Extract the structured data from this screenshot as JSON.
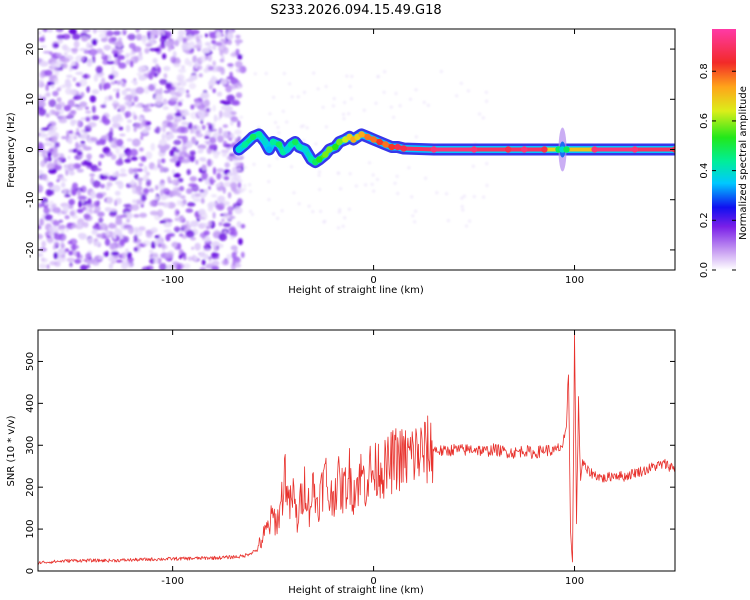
{
  "figure": {
    "title": "S233.2026.094.15.49.G18"
  },
  "chart_data": [
    {
      "type": "heatmap",
      "xlabel": "Height of straight line (km)",
      "ylabel": "Frequency (Hz)",
      "xlim": [
        -167,
        150
      ],
      "ylim": [
        -24,
        24
      ],
      "xticks": [
        -100,
        0,
        100
      ],
      "xtick_labels": [
        "-100",
        "0",
        "100"
      ],
      "yticks": [
        -20,
        -10,
        0,
        10,
        20
      ],
      "ytick_labels": [
        "-20",
        "-10",
        "0",
        "10",
        "20"
      ],
      "noise_region_x": [
        -167,
        -67
      ],
      "trace": {
        "x": [
          -67,
          -64,
          -60,
          -57,
          -54,
          -52,
          -50,
          -47,
          -45,
          -43,
          -41,
          -39,
          -37,
          -34,
          -31,
          -29,
          -27,
          -24,
          -22,
          -19,
          -17,
          -14,
          -12,
          -10,
          -8,
          -6,
          -3,
          0,
          3,
          6,
          9,
          12,
          15,
          30,
          50,
          67,
          75,
          85,
          92,
          94,
          96,
          110,
          130,
          150
        ],
        "freq_hz": [
          0,
          1,
          2.5,
          3,
          1.5,
          0,
          1.5,
          1,
          -0.5,
          0,
          1,
          1.5,
          0.5,
          0,
          -2,
          -2.5,
          -2,
          -1,
          0,
          0.5,
          1.5,
          2,
          2.5,
          2,
          2.5,
          3,
          2.5,
          2,
          1.5,
          1,
          0.5,
          0.5,
          0.2,
          0,
          0,
          0,
          0,
          0,
          0,
          0,
          0,
          0,
          0,
          0
        ],
        "amplitude": [
          0.4,
          0.45,
          0.5,
          0.45,
          0.4,
          0.35,
          0.45,
          0.5,
          0.45,
          0.4,
          0.45,
          0.5,
          0.45,
          0.4,
          0.45,
          0.5,
          0.55,
          0.6,
          0.6,
          0.55,
          0.6,
          0.65,
          0.7,
          0.75,
          0.7,
          0.75,
          0.8,
          0.8,
          0.85,
          0.8,
          0.85,
          0.9,
          0.9,
          0.95,
          0.95,
          0.9,
          0.95,
          0.9,
          0.5,
          0.4,
          0.5,
          0.95,
          0.95,
          0.9
        ]
      },
      "colorbar": {
        "label": "Normalized spectral amplitude",
        "ticks": [
          0.0,
          0.2,
          0.4,
          0.6,
          0.8
        ],
        "tick_labels": [
          "0.0",
          "0.2",
          "0.4",
          "0.6",
          "0.8"
        ],
        "range": [
          0,
          0.97
        ]
      }
    },
    {
      "type": "line",
      "xlabel": "Height of straight line (km)",
      "ylabel": "SNR (10 * v/v)",
      "xlim": [
        -167,
        150
      ],
      "ylim": [
        0,
        575
      ],
      "xticks": [
        -100,
        0,
        100
      ],
      "xtick_labels": [
        "-100",
        "0",
        "100"
      ],
      "yticks": [
        0,
        100,
        200,
        300,
        400,
        500
      ],
      "ytick_labels": [
        "0",
        "100",
        "200",
        "300",
        "400",
        "500"
      ],
      "series": [
        {
          "name": "SNR",
          "color": "#e8322d",
          "x": [
            -167,
            -150,
            -130,
            -110,
            -90,
            -75,
            -65,
            -58,
            -55,
            -52,
            -50,
            -48,
            -46,
            -44,
            -42,
            -40,
            -38,
            -36,
            -34,
            -32,
            -30,
            -28,
            -26,
            -24,
            -22,
            -20,
            -18,
            -16,
            -14,
            -12,
            -10,
            -8,
            -6,
            -4,
            -2,
            0,
            3,
            6,
            9,
            12,
            15,
            18,
            22,
            26,
            30,
            35,
            40,
            45,
            50,
            55,
            60,
            65,
            70,
            75,
            80,
            85,
            90,
            94,
            96,
            97,
            98,
            99,
            100,
            101,
            102,
            103,
            104,
            106,
            110,
            115,
            120,
            125,
            130,
            135,
            140,
            145,
            150
          ],
          "y": [
            20,
            25,
            25,
            28,
            30,
            32,
            35,
            50,
            80,
            110,
            130,
            115,
            160,
            240,
            150,
            180,
            120,
            170,
            210,
            150,
            200,
            160,
            190,
            230,
            170,
            180,
            220,
            190,
            200,
            230,
            190,
            210,
            230,
            210,
            240,
            230,
            250,
            240,
            260,
            270,
            265,
            275,
            280,
            285,
            290,
            285,
            290,
            288,
            292,
            285,
            290,
            285,
            282,
            288,
            280,
            290,
            285,
            300,
            330,
            480,
            100,
            20,
            560,
            120,
            400,
            220,
            260,
            240,
            230,
            220,
            230,
            225,
            235,
            240,
            250,
            255,
            245
          ]
        }
      ]
    }
  ]
}
